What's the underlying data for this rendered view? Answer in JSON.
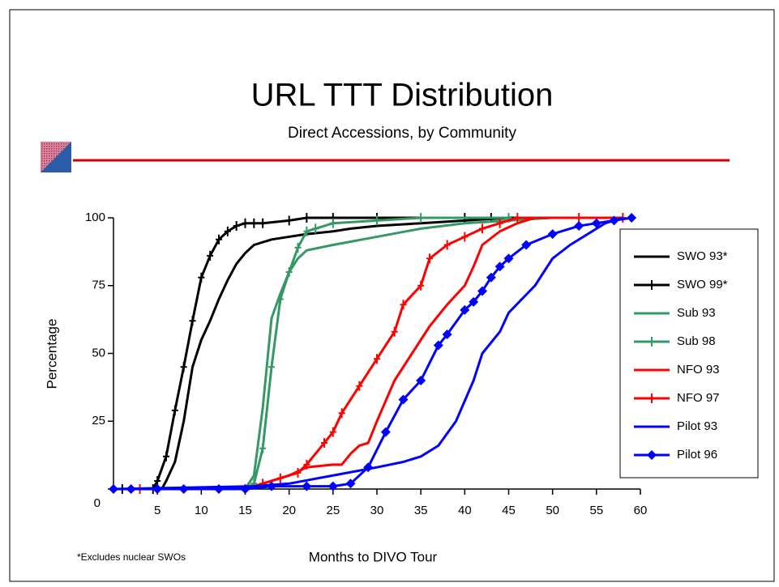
{
  "chart_data": {
    "type": "line",
    "title": "URL TTT Distribution",
    "subtitle": "Direct Accessions, by Community",
    "x_label": "Months to DIVO Tour",
    "y_label": "Percentage",
    "annotation": "*Excludes nuclear SWOs",
    "xlim": [
      0,
      60
    ],
    "xticks": [
      5,
      10,
      15,
      20,
      25,
      30,
      35,
      40,
      45,
      50,
      55,
      60
    ],
    "ylim": [
      0,
      100
    ],
    "yticks": [
      0,
      25,
      50,
      75,
      100
    ],
    "legend": "right",
    "series": [
      {
        "name": "SWO 93*",
        "color": "#000000",
        "marker": "none",
        "x": [
          5.5,
          6,
          7,
          8,
          9,
          10,
          11,
          12,
          13,
          14,
          15,
          16,
          18,
          20,
          22,
          25,
          27,
          30,
          35,
          40,
          45,
          50,
          58
        ],
        "values": [
          0,
          3,
          10,
          25,
          45,
          55,
          62,
          70,
          77,
          83,
          87,
          90,
          92,
          93,
          94,
          95,
          96,
          97,
          98,
          99,
          100,
          100,
          100
        ]
      },
      {
        "name": "SWO 99*",
        "color": "#000000",
        "marker": "plus",
        "x": [
          1,
          4.5,
          5,
          6,
          7,
          8,
          9,
          10,
          11,
          12,
          13,
          14,
          15,
          16,
          17,
          20,
          22,
          25,
          30,
          40,
          43
        ],
        "values": [
          0,
          0,
          3,
          12,
          29,
          45,
          62,
          78,
          86,
          92,
          95,
          97,
          98,
          98,
          98,
          99,
          100,
          100,
          100,
          100,
          100
        ]
      },
      {
        "name": "Sub 93",
        "color": "#339966",
        "marker": "none",
        "x": [
          15,
          16,
          17,
          18,
          19,
          20,
          21,
          22,
          25,
          30,
          35,
          40,
          45,
          50,
          58
        ],
        "values": [
          0,
          5,
          30,
          63,
          72,
          80,
          85,
          88,
          90,
          93,
          96,
          98,
          99,
          100,
          100
        ]
      },
      {
        "name": "Sub 98",
        "color": "#339966",
        "marker": "plus",
        "x": [
          15,
          16,
          17,
          18,
          19,
          20,
          21,
          22,
          23,
          25,
          30,
          35,
          45
        ],
        "values": [
          0,
          2,
          15,
          45,
          70,
          80,
          89,
          95,
          96,
          98,
          99,
          100,
          100
        ]
      },
      {
        "name": "NFO 93",
        "color": "#ff0000",
        "marker": "none",
        "x": [
          15,
          16,
          18,
          20,
          22,
          25,
          26,
          27,
          28,
          29,
          30,
          32,
          34,
          36,
          38,
          40,
          41,
          42,
          44,
          46,
          48,
          58
        ],
        "values": [
          0,
          1,
          3,
          5,
          8,
          9,
          9,
          13,
          16,
          17,
          25,
          40,
          50,
          60,
          68,
          75,
          82,
          90,
          95,
          98,
          100,
          100
        ]
      },
      {
        "name": "NFO 97",
        "color": "#ff0000",
        "marker": "plus",
        "x": [
          3,
          15,
          17,
          19,
          21,
          22,
          24,
          25,
          26,
          28,
          30,
          32,
          33,
          35,
          36,
          38,
          40,
          42,
          44,
          46,
          53,
          58
        ],
        "values": [
          0,
          0,
          2,
          4,
          6,
          9,
          17,
          21,
          28,
          38,
          48,
          58,
          68,
          75,
          85,
          90,
          93,
          96,
          98,
          100,
          100,
          100
        ]
      },
      {
        "name": "Pilot 93",
        "color": "#0000ff",
        "marker": "none",
        "x": [
          0,
          16,
          20,
          25,
          30,
          33,
          35,
          37,
          39,
          41,
          42,
          44,
          45,
          48,
          50,
          52,
          54,
          56,
          58
        ],
        "values": [
          0,
          1,
          2,
          5,
          8,
          10,
          12,
          16,
          25,
          40,
          50,
          58,
          65,
          75,
          85,
          90,
          94,
          98,
          100
        ]
      },
      {
        "name": "Pilot 96",
        "color": "#0000ff",
        "marker": "diamond",
        "x": [
          0,
          2,
          5,
          8,
          12,
          15,
          18,
          22,
          25,
          27,
          29,
          31,
          33,
          35,
          37,
          38,
          40,
          41,
          42,
          43,
          44,
          45,
          47,
          50,
          53,
          55,
          57,
          59
        ],
        "values": [
          0,
          0,
          0,
          0,
          0,
          0,
          1,
          1,
          1,
          2,
          8,
          21,
          33,
          40,
          53,
          57,
          66,
          69,
          73,
          78,
          82,
          85,
          90,
          94,
          97,
          98,
          99,
          100
        ]
      }
    ]
  }
}
